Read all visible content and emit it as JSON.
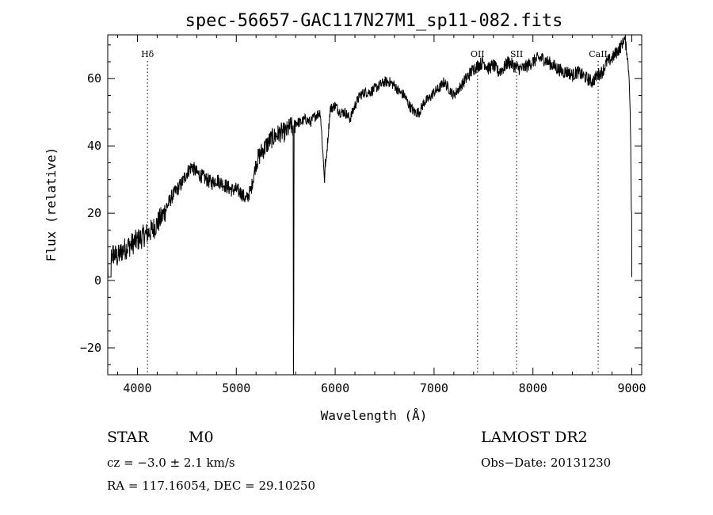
{
  "chart_data": {
    "type": "line",
    "title": "spec-56657-GAC117N27M1_sp11-082.fits",
    "xlabel": "Wavelength (Å)",
    "ylabel": "Flux (relative)",
    "xlim": [
      3700,
      9100
    ],
    "ylim": [
      -28,
      73
    ],
    "xticks": [
      4000,
      5000,
      6000,
      7000,
      8000,
      9000
    ],
    "yticks": [
      -20,
      0,
      20,
      40,
      60
    ],
    "grid": false,
    "lines": [
      {
        "label": "Hδ",
        "x": 4102
      },
      {
        "label": "OII",
        "x": 7440
      },
      {
        "label": "SII",
        "x": 7835
      },
      {
        "label": "CaII",
        "x": 8660
      }
    ],
    "series": [
      {
        "x": [
          3700,
          3750,
          3800,
          3850,
          3900,
          3950,
          4000,
          4050,
          4100,
          4150,
          4200,
          4250,
          4300,
          4350,
          4400,
          4450,
          4500,
          4550,
          4600,
          4650,
          4700,
          4750,
          4800,
          4850,
          4900,
          4950,
          5000,
          5050,
          5100,
          5150,
          5200,
          5250,
          5300,
          5350,
          5400,
          5450,
          5500,
          5550,
          5577,
          5600,
          5650,
          5700,
          5750,
          5800,
          5850,
          5893,
          5950,
          6000,
          6050,
          6100,
          6150,
          6200,
          6250,
          6300,
          6350,
          6400,
          6450,
          6500,
          6550,
          6600,
          6650,
          6700,
          6750,
          6800,
          6850,
          6900,
          6950,
          7000,
          7050,
          7100,
          7150,
          7200,
          7250,
          7300,
          7350,
          7400,
          7450,
          7500,
          7550,
          7600,
          7650,
          7700,
          7750,
          7800,
          7850,
          7900,
          7950,
          8000,
          8050,
          8100,
          8150,
          8200,
          8250,
          8300,
          8350,
          8400,
          8450,
          8500,
          8550,
          8600,
          8650,
          8700,
          8750,
          8800,
          8850,
          8900,
          8925,
          8950,
          8975,
          8990,
          9000
        ],
        "y": [
          5,
          8,
          7,
          9,
          10,
          11,
          12,
          13,
          14,
          15,
          17,
          19,
          22,
          25,
          27,
          29,
          32,
          34,
          32,
          31,
          30,
          29,
          30,
          29,
          28,
          27,
          27,
          26,
          24,
          27,
          35,
          38,
          40,
          42,
          43,
          44,
          44,
          46,
          45,
          47,
          47,
          48,
          47,
          49,
          50,
          30,
          51,
          52,
          50,
          50,
          48,
          52,
          55,
          56,
          56,
          57,
          58,
          59,
          59,
          58,
          56,
          55,
          52,
          50,
          50,
          53,
          54,
          56,
          57,
          59,
          57,
          55,
          57,
          59,
          61,
          63,
          64,
          65,
          63,
          64,
          62,
          63,
          65,
          64,
          63,
          63,
          64,
          65,
          66,
          66,
          65,
          64,
          63,
          62,
          62,
          61,
          62,
          61,
          60,
          59,
          61,
          62,
          65,
          66,
          68,
          70,
          72,
          68,
          60,
          40,
          1
        ]
      }
    ]
  },
  "footer": {
    "object": "STAR",
    "subclass": "M0",
    "survey": "LAMOST DR2",
    "cz": "cz = −3.0 ± 2.1 km/s",
    "obs_date": "Obs−Date: 20131230",
    "coords": "RA = 117.16054, DEC =  29.10250"
  }
}
